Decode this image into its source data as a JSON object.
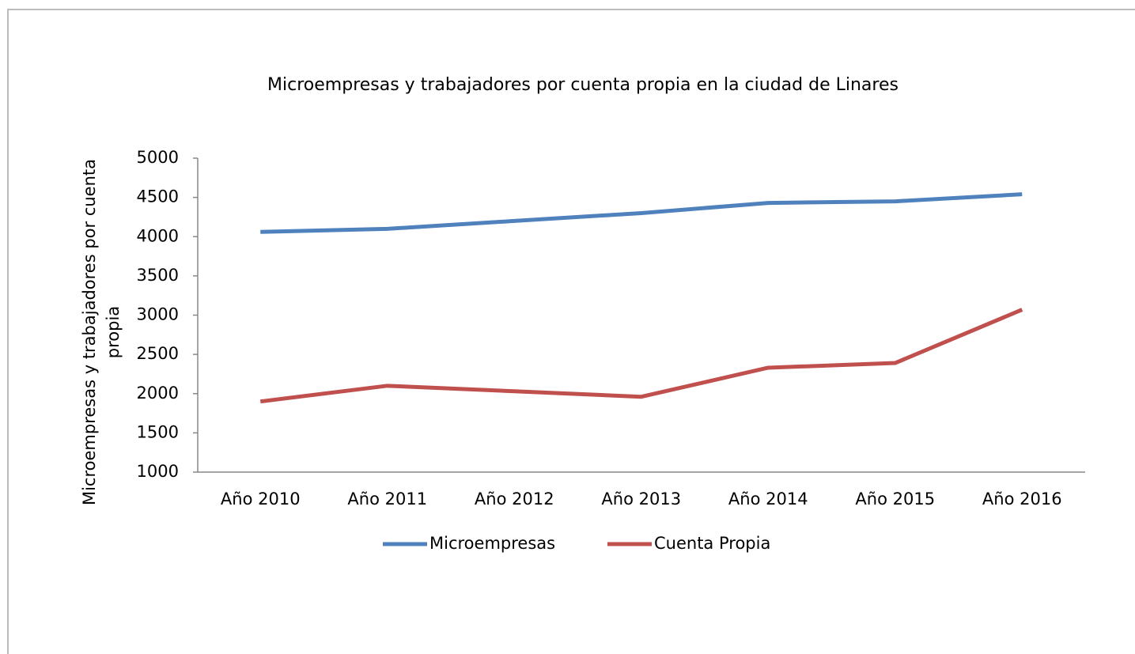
{
  "chart_data": {
    "type": "line",
    "title": "Microempresas y trabajadores por cuenta propia en la ciudad de Linares",
    "ylabel": "Microempresas y trabajadores por cuenta propia",
    "categories": [
      "Año 2010",
      "Año 2011",
      "Año 2012",
      "Año 2013",
      "Año 2014",
      "Año 2015",
      "Año 2016"
    ],
    "series": [
      {
        "name": "Microempresas",
        "color": "#4f81bd",
        "values": [
          4060,
          4100,
          4200,
          4300,
          4430,
          4450,
          4540
        ]
      },
      {
        "name": "Cuenta Propia",
        "color": "#c0504d",
        "values": [
          1900,
          2100,
          2030,
          1960,
          2330,
          2390,
          3070
        ]
      }
    ],
    "ylim": [
      1000,
      5000
    ],
    "yticks": [
      1000,
      1500,
      2000,
      2500,
      3000,
      3500,
      4000,
      4500,
      5000
    ],
    "grid": false,
    "legend": "bottom"
  }
}
